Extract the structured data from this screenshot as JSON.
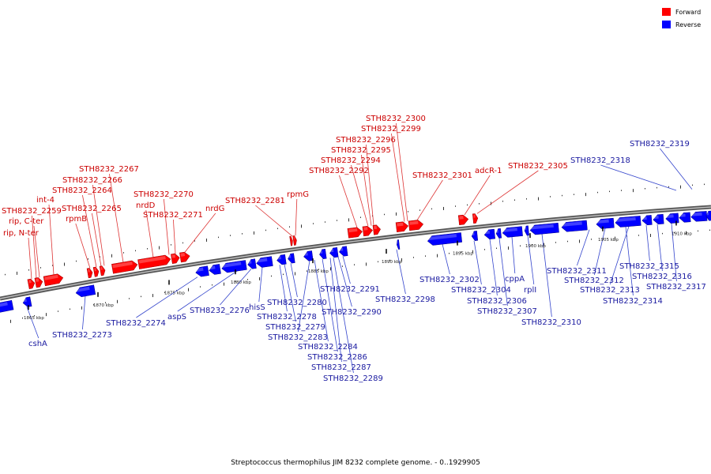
{
  "caption": "Streptococcus thermophilus JIM 8232 complete genome. - 0..1929905",
  "legend": {
    "forward": {
      "label": "Forward",
      "color": "#ff0000"
    },
    "reverse": {
      "label": "Reverse",
      "color": "#0000ff"
    }
  },
  "ticks": [
    "1865 kbp",
    "1870 kbp",
    "1875 kbp",
    "1880 kbp",
    "1885 kbp",
    "1890 kbp",
    "1895 kbp",
    "1900 kbp",
    "1905 kbp",
    "1910 kbp"
  ],
  "forward_labels": [
    "rip, N-ter",
    "rip, C-ter",
    "STH8232_2259",
    "int-4",
    "rpmB",
    "STH8232_2265",
    "STH8232_2264",
    "STH8232_2266",
    "STH8232_2267",
    "nrdD",
    "STH8232_2270",
    "STH8232_2271",
    "nrdG",
    "STH8232_2281",
    "rpmG",
    "STH8232_2292",
    "STH8232_2294",
    "STH8232_2295",
    "STH8232_2296",
    "STH8232_2299",
    "STH8232_2300",
    "STH8232_2301",
    "adcR-1",
    "STH8232_2305"
  ],
  "reverse_labels": [
    "cshA",
    "STH8232_2273",
    "STH8232_2274",
    "aspS",
    "STH8232_2276",
    "hisS",
    "STH8232_2278",
    "STH8232_2279",
    "STH8232_2280",
    "STH8232_2283",
    "STH8232_2284",
    "STH8232_2286",
    "STH8232_2287",
    "STH8232_2289",
    "STH8232_2290",
    "STH8232_2291",
    "STH8232_2298",
    "STH8232_2302",
    "STH8232_2304",
    "STH8232_2306",
    "STH8232_2307",
    "cppA",
    "rplI",
    "STH8232_2310",
    "STH8232_2311",
    "STH8232_2312",
    "STH8232_2313",
    "STH8232_2314",
    "STH8232_2315",
    "STH8232_2316",
    "STH8232_2317",
    "STH8232_2318",
    "STH8232_2319"
  ]
}
